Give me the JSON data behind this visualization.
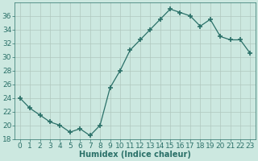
{
  "x": [
    0,
    1,
    2,
    3,
    4,
    5,
    6,
    7,
    8,
    9,
    10,
    11,
    12,
    13,
    14,
    15,
    16,
    17,
    18,
    19,
    20,
    21,
    22,
    23
  ],
  "y": [
    24,
    22.5,
    21.5,
    20.5,
    20,
    19,
    19.5,
    18.5,
    20,
    25.5,
    28,
    31,
    32.5,
    34,
    35.5,
    37,
    36.5,
    36,
    34.5,
    35.5,
    33,
    32.5,
    32.5,
    30.5
  ],
  "line_color": "#2a7068",
  "marker": "+",
  "marker_size": 4,
  "marker_lw": 1.2,
  "bg_color": "#cce8e0",
  "grid_color": "#b0c8be",
  "xlabel": "Humidex (Indice chaleur)",
  "ylim": [
    18,
    38
  ],
  "xlim": [
    -0.5,
    23.5
  ],
  "yticks": [
    18,
    20,
    22,
    24,
    26,
    28,
    30,
    32,
    34,
    36
  ],
  "xticks": [
    0,
    1,
    2,
    3,
    4,
    5,
    6,
    7,
    8,
    9,
    10,
    11,
    12,
    13,
    14,
    15,
    16,
    17,
    18,
    19,
    20,
    21,
    22,
    23
  ],
  "label_fontsize": 7,
  "tick_fontsize": 6.5
}
